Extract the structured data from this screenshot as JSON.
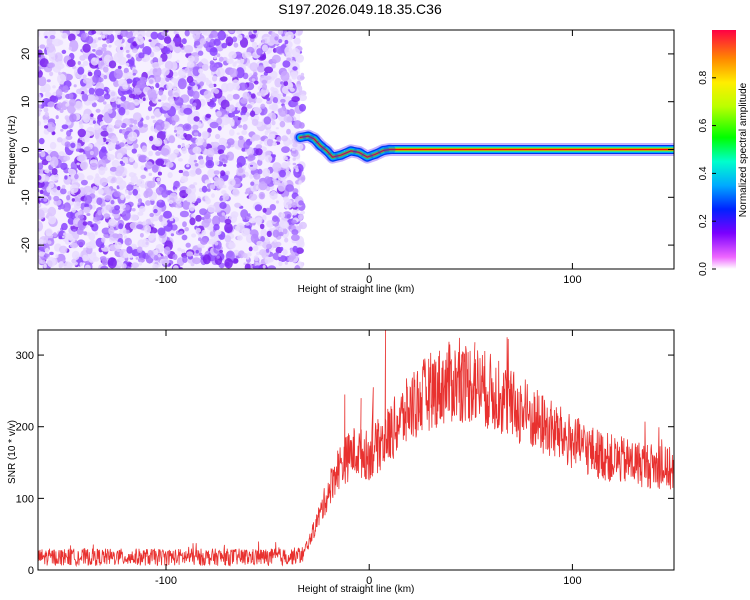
{
  "title": "S197.2026.049.18.35.C36",
  "chart_data": [
    {
      "type": "heatmap",
      "xlabel": "Height of straight line (km)",
      "ylabel": "Frequency (Hz)",
      "xlim": [
        -163,
        150
      ],
      "ylim": [
        -25,
        25
      ],
      "xticks": [
        -100,
        0,
        100
      ],
      "yticks": [
        -20,
        -10,
        0,
        10,
        20
      ],
      "noise_region_x": [
        -163,
        -34
      ],
      "signal_onset_x": -34,
      "track": [
        {
          "x": -34,
          "y": 2.5
        },
        {
          "x": -30,
          "y": 2.8
        },
        {
          "x": -27,
          "y": 2.2
        },
        {
          "x": -24,
          "y": 0.8
        },
        {
          "x": -21,
          "y": -0.2
        },
        {
          "x": -18,
          "y": -1.6
        },
        {
          "x": -14,
          "y": -1.2
        },
        {
          "x": -9,
          "y": -0.3
        },
        {
          "x": -5,
          "y": -0.6
        },
        {
          "x": -1,
          "y": -1.6
        },
        {
          "x": 3,
          "y": -1.0
        },
        {
          "x": 7,
          "y": -0.2
        },
        {
          "x": 10,
          "y": 0.0
        },
        {
          "x": 150,
          "y": 0.0
        }
      ],
      "colorbar": {
        "label": "Normalized spectral amplitude",
        "range": [
          0,
          1
        ],
        "ticks": [
          0.0,
          0.2,
          0.4,
          0.6,
          0.8
        ]
      }
    },
    {
      "type": "line",
      "xlabel": "Height of straight line (km)",
      "ylabel": "SNR (10 * v/v)",
      "xlim": [
        -163,
        150
      ],
      "ylim": [
        0,
        335
      ],
      "xticks": [
        -100,
        0,
        100
      ],
      "yticks": [
        0,
        100,
        200,
        300
      ],
      "series_color": "#e8312f",
      "envelope": [
        {
          "x": -163,
          "y": 18
        },
        {
          "x": -40,
          "y": 18
        },
        {
          "x": -32,
          "y": 22
        },
        {
          "x": -24,
          "y": 80
        },
        {
          "x": -16,
          "y": 140
        },
        {
          "x": -8,
          "y": 165
        },
        {
          "x": 0,
          "y": 160
        },
        {
          "x": 10,
          "y": 190
        },
        {
          "x": 20,
          "y": 225
        },
        {
          "x": 30,
          "y": 250
        },
        {
          "x": 40,
          "y": 262
        },
        {
          "x": 50,
          "y": 262
        },
        {
          "x": 60,
          "y": 248
        },
        {
          "x": 70,
          "y": 230
        },
        {
          "x": 80,
          "y": 212
        },
        {
          "x": 90,
          "y": 195
        },
        {
          "x": 100,
          "y": 178
        },
        {
          "x": 110,
          "y": 165
        },
        {
          "x": 120,
          "y": 155
        },
        {
          "x": 130,
          "y": 150
        },
        {
          "x": 140,
          "y": 145
        },
        {
          "x": 150,
          "y": 140
        }
      ],
      "spikes": [
        {
          "x": 8,
          "y": 335
        },
        {
          "x": -12,
          "y": 245
        },
        {
          "x": -4,
          "y": 240
        },
        {
          "x": 2,
          "y": 255
        },
        {
          "x": 52,
          "y": 318
        },
        {
          "x": 46,
          "y": 305
        }
      ]
    }
  ]
}
